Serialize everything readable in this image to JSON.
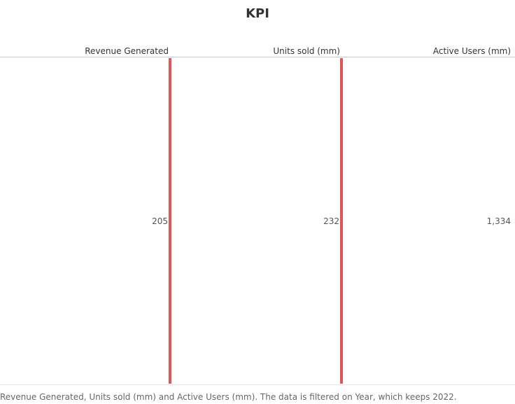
{
  "chart_data": {
    "type": "table",
    "title": "KPI",
    "columns": [
      "Revenue Generated",
      "Units sold (mm)",
      "Active Users (mm)"
    ],
    "rows": [
      {
        "values": [
          "205",
          "232",
          "1,334"
        ]
      }
    ],
    "numeric_values": [
      205,
      232,
      1334
    ],
    "divider_color": "#e15759",
    "caption": "Revenue Generated, Units sold (mm) and Active Users (mm). The data is filtered on Year, which keeps 2022."
  }
}
